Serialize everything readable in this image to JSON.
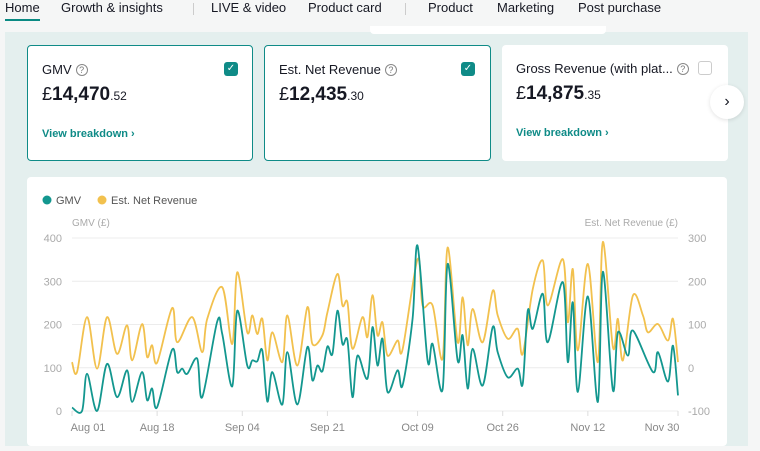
{
  "nav": {
    "tabs": [
      "Home",
      "Growth & insights",
      "LIVE & video",
      "Product card",
      "Product",
      "Marketing",
      "Post purchase"
    ],
    "active": "Home"
  },
  "cards": [
    {
      "title": "GMV",
      "currency": "£",
      "value_main": "14,470",
      "value_dec": ".52",
      "link": "View breakdown ›",
      "checked": true
    },
    {
      "title": "Est. Net Revenue",
      "currency": "£",
      "value_main": "12,435",
      "value_dec": ".30",
      "checked": true
    },
    {
      "title": "Gross Revenue (with plat...",
      "currency": "£",
      "value_main": "14,875",
      "value_dec": ".35",
      "link": "View breakdown ›",
      "checked": false
    }
  ],
  "next_icon": "chevron-right-icon",
  "colors": {
    "accent": "#0f8b87",
    "gmv": "#13978f",
    "net": "#f2c14e"
  },
  "chart_data": {
    "type": "line",
    "legend": [
      "GMV",
      "Est. Net Revenue"
    ],
    "legend_position": "top-left",
    "ylabel_left": "GMV (£)",
    "ylabel_right": "Est. Net Revenue (£)",
    "ylim_left": [
      0,
      400
    ],
    "ylim_right": [
      -100,
      300
    ],
    "yticks_left": [
      "400",
      "300",
      "200",
      "100",
      "0"
    ],
    "yticks_right": [
      "300",
      "200",
      "100",
      "0",
      "-100"
    ],
    "xticks": [
      "Aug 01",
      "Aug 18",
      "Sep 04",
      "Sep 21",
      "Oct 09",
      "Oct 26",
      "Nov 12",
      "Nov 30"
    ],
    "grid": true,
    "series": [
      {
        "name": "GMV",
        "axis": "left",
        "points": [
          [
            "Aug 01",
            8
          ],
          [
            "Aug 03",
            0
          ],
          [
            "Aug 04",
            86
          ],
          [
            "Aug 06",
            0
          ],
          [
            "Aug 08",
            109
          ],
          [
            "Aug 10",
            32
          ],
          [
            "Aug 12",
            94
          ],
          [
            "Aug 13",
            21
          ],
          [
            "Aug 15",
            90
          ],
          [
            "Aug 16",
            25
          ],
          [
            "Aug 17",
            52
          ],
          [
            "Aug 18",
            9
          ],
          [
            "Aug 21",
            142
          ],
          [
            "Aug 22",
            90
          ],
          [
            "Aug 23",
            98
          ],
          [
            "Aug 24",
            86
          ],
          [
            "Aug 26",
            121
          ],
          [
            "Aug 27",
            32
          ],
          [
            "Aug 30",
            207
          ],
          [
            "Aug 31",
            178
          ],
          [
            "Sep 02",
            57
          ],
          [
            "Sep 03",
            232
          ],
          [
            "Sep 05",
            105
          ],
          [
            "Sep 06",
            117
          ],
          [
            "Sep 07",
            115
          ],
          [
            "Sep 08",
            140
          ],
          [
            "Sep 09",
            22
          ],
          [
            "Sep 10",
            90
          ],
          [
            "Sep 12",
            15
          ],
          [
            "Sep 13",
            136
          ],
          [
            "Sep 15",
            15
          ],
          [
            "Sep 17",
            148
          ],
          [
            "Sep 18",
            71
          ],
          [
            "Sep 19",
            105
          ],
          [
            "Sep 20",
            92
          ],
          [
            "Sep 21",
            149
          ],
          [
            "Sep 22",
            132
          ],
          [
            "Sep 23",
            232
          ],
          [
            "Sep 24",
            155
          ],
          [
            "Sep 25",
            163
          ],
          [
            "Sep 26",
            32
          ],
          [
            "Sep 27",
            128
          ],
          [
            "Sep 29",
            75
          ],
          [
            "Sep 30",
            194
          ],
          [
            "Oct 01",
            105
          ],
          [
            "Oct 02",
            167
          ],
          [
            "Oct 03",
            44
          ],
          [
            "Oct 05",
            94
          ],
          [
            "Oct 06",
            59
          ],
          [
            "Oct 08",
            213
          ],
          [
            "Oct 09",
            382
          ],
          [
            "Oct 11",
            117
          ],
          [
            "Oct 12",
            155
          ],
          [
            "Oct 14",
            50
          ],
          [
            "Oct 15",
            340
          ],
          [
            "Oct 17",
            117
          ],
          [
            "Oct 18",
            175
          ],
          [
            "Oct 19",
            52
          ],
          [
            "Oct 20",
            144
          ],
          [
            "Oct 22",
            59
          ],
          [
            "Oct 24",
            194
          ],
          [
            "Oct 25",
            136
          ],
          [
            "Oct 27",
            78
          ],
          [
            "Oct 29",
            98
          ],
          [
            "Oct 30",
            63
          ],
          [
            "Oct 31",
            232
          ],
          [
            "Nov 01",
            190
          ],
          [
            "Nov 03",
            271
          ],
          [
            "Nov 04",
            159
          ],
          [
            "Nov 07",
            298
          ],
          [
            "Nov 08",
            113
          ],
          [
            "Nov 09",
            251
          ],
          [
            "Nov 10",
            44
          ],
          [
            "Nov 12",
            265
          ],
          [
            "Nov 14",
            21
          ],
          [
            "Nov 15",
            322
          ],
          [
            "Nov 17",
            48
          ],
          [
            "Nov 18",
            182
          ],
          [
            "Nov 20",
            128
          ],
          [
            "Nov 21",
            186
          ],
          [
            "Nov 25",
            90
          ],
          [
            "Nov 26",
            136
          ],
          [
            "Nov 28",
            68
          ],
          [
            "Nov 29",
            151
          ],
          [
            "Nov 30",
            36
          ]
        ]
      },
      {
        "name": "Est. Net Revenue",
        "axis": "right",
        "points": [
          [
            "Aug 01",
            13
          ],
          [
            "Aug 02",
            -10
          ],
          [
            "Aug 04",
            117
          ],
          [
            "Aug 06",
            -2
          ],
          [
            "Aug 08",
            117
          ],
          [
            "Aug 10",
            32
          ],
          [
            "Aug 12",
            98
          ],
          [
            "Aug 13",
            17
          ],
          [
            "Aug 15",
            101
          ],
          [
            "Aug 16",
            25
          ],
          [
            "Aug 17",
            52
          ],
          [
            "Aug 18",
            12
          ],
          [
            "Aug 21",
            138
          ],
          [
            "Aug 22",
            59
          ],
          [
            "Aug 25",
            117
          ],
          [
            "Aug 27",
            36
          ],
          [
            "Aug 28",
            113
          ],
          [
            "Aug 31",
            186
          ],
          [
            "Sep 02",
            55
          ],
          [
            "Sep 03",
            221
          ],
          [
            "Sep 05",
            82
          ],
          [
            "Sep 06",
            121
          ],
          [
            "Sep 07",
            78
          ],
          [
            "Sep 08",
            113
          ],
          [
            "Sep 09",
            17
          ],
          [
            "Sep 10",
            82
          ],
          [
            "Sep 12",
            13
          ],
          [
            "Sep 13",
            121
          ],
          [
            "Sep 15",
            5
          ],
          [
            "Sep 17",
            140
          ],
          [
            "Sep 18",
            55
          ],
          [
            "Sep 20",
            75
          ],
          [
            "Sep 21",
            128
          ],
          [
            "Sep 23",
            217
          ],
          [
            "Sep 24",
            144
          ],
          [
            "Sep 25",
            151
          ],
          [
            "Sep 26",
            44
          ],
          [
            "Sep 28",
            117
          ],
          [
            "Sep 29",
            71
          ],
          [
            "Sep 30",
            168
          ],
          [
            "Oct 01",
            75
          ],
          [
            "Oct 02",
            105
          ],
          [
            "Oct 03",
            28
          ],
          [
            "Oct 05",
            63
          ],
          [
            "Oct 06",
            42
          ],
          [
            "Oct 09",
            251
          ],
          [
            "Oct 10",
            144
          ],
          [
            "Oct 12",
            144
          ],
          [
            "Oct 14",
            21
          ],
          [
            "Oct 15",
            278
          ],
          [
            "Oct 17",
            59
          ],
          [
            "Oct 18",
            163
          ],
          [
            "Oct 19",
            52
          ],
          [
            "Oct 20",
            136
          ],
          [
            "Oct 22",
            59
          ],
          [
            "Oct 24",
            178
          ],
          [
            "Oct 25",
            121
          ],
          [
            "Oct 27",
            67
          ],
          [
            "Oct 29",
            90
          ],
          [
            "Oct 30",
            32
          ],
          [
            "Nov 01",
            182
          ],
          [
            "Nov 03",
            248
          ],
          [
            "Nov 04",
            144
          ],
          [
            "Nov 07",
            251
          ],
          [
            "Nov 08",
            105
          ],
          [
            "Nov 09",
            228
          ],
          [
            "Nov 10",
            40
          ],
          [
            "Nov 12",
            240
          ],
          [
            "Nov 14",
            13
          ],
          [
            "Nov 15",
            291
          ],
          [
            "Nov 17",
            48
          ],
          [
            "Nov 18",
            113
          ],
          [
            "Nov 19",
            17
          ],
          [
            "Nov 21",
            167
          ],
          [
            "Nov 23",
            121
          ],
          [
            "Nov 24",
            82
          ],
          [
            "Nov 26",
            101
          ],
          [
            "Nov 28",
            63
          ],
          [
            "Nov 29",
            113
          ],
          [
            "Nov 30",
            13
          ]
        ]
      }
    ]
  }
}
